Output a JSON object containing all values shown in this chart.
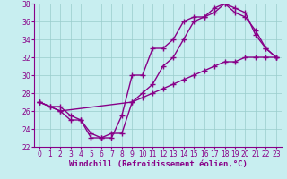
{
  "title": "",
  "xlabel": "Windchill (Refroidissement éolien,°C)",
  "ylabel": "",
  "background_color": "#c8eef0",
  "line_color": "#880088",
  "grid_color": "#99cccc",
  "xlim": [
    -0.5,
    23.5
  ],
  "ylim": [
    22,
    38
  ],
  "xticks": [
    0,
    1,
    2,
    3,
    4,
    5,
    6,
    7,
    8,
    9,
    10,
    11,
    12,
    13,
    14,
    15,
    16,
    17,
    18,
    19,
    20,
    21,
    22,
    23
  ],
  "yticks": [
    22,
    24,
    26,
    28,
    30,
    32,
    34,
    36,
    38
  ],
  "line1_x": [
    0,
    1,
    2,
    3,
    4,
    5,
    6,
    7,
    8,
    9,
    10,
    11,
    12,
    13,
    14,
    15,
    16,
    17,
    18,
    19,
    20,
    21,
    22,
    23
  ],
  "line1_y": [
    27,
    26.5,
    26.5,
    25.5,
    25,
    23.5,
    23,
    23,
    25.5,
    30,
    30,
    33,
    33,
    34,
    36,
    36.5,
    36.5,
    37.5,
    38,
    37,
    36.5,
    35,
    33,
    32
  ],
  "line2_x": [
    0,
    1,
    2,
    3,
    4,
    5,
    6,
    7,
    8,
    9,
    10,
    11,
    12,
    13,
    14,
    15,
    16,
    17,
    18,
    19,
    20,
    21,
    22,
    23
  ],
  "line2_y": [
    27,
    26.5,
    26,
    25,
    25,
    23,
    23,
    23.5,
    23.5,
    27,
    28,
    29,
    31,
    32,
    34,
    36,
    36.5,
    37,
    38,
    37.5,
    37,
    34.5,
    33,
    32
  ],
  "line3_x": [
    0,
    2,
    9,
    10,
    11,
    12,
    13,
    14,
    15,
    16,
    17,
    18,
    19,
    20,
    21,
    22,
    23
  ],
  "line3_y": [
    27,
    26,
    27,
    27.5,
    28,
    28.5,
    29,
    29.5,
    30,
    30.5,
    31,
    31.5,
    31.5,
    32,
    32,
    32,
    32
  ],
  "marker": "+",
  "markersize": 4,
  "linewidth": 1.0,
  "tick_fontsize": 5.5,
  "label_fontsize": 6.5
}
